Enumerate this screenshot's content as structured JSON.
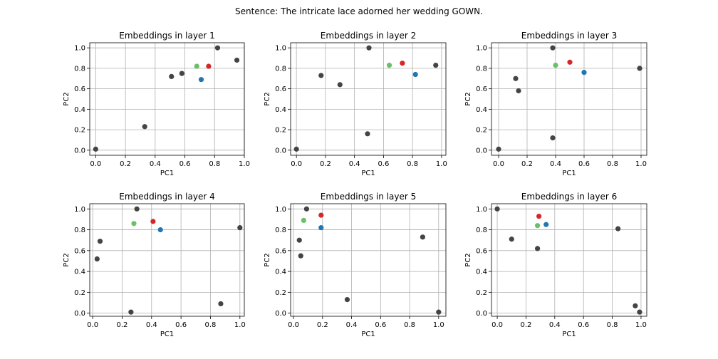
{
  "figure": {
    "suptitle": "Sentence: The intricate lace adorned her wedding GOWN."
  },
  "chart_data": [
    {
      "type": "scatter",
      "title": "Embeddings in layer 1",
      "xlabel": "PC1",
      "ylabel": "PC2",
      "xlim": [
        -0.04,
        1.0
      ],
      "ylim": [
        -0.05,
        1.05
      ],
      "xticks": [
        "0.0",
        "0.2",
        "0.4",
        "0.6",
        "0.8",
        "1.0"
      ],
      "yticks": [
        "0.0",
        "0.2",
        "0.4",
        "0.6",
        "0.8",
        "1.0"
      ],
      "grid": true,
      "points": [
        {
          "x": 0.0,
          "y": 0.01,
          "color": "#444444"
        },
        {
          "x": 0.33,
          "y": 0.23,
          "color": "#444444"
        },
        {
          "x": 0.51,
          "y": 0.72,
          "color": "#444444"
        },
        {
          "x": 0.58,
          "y": 0.75,
          "color": "#444444"
        },
        {
          "x": 0.68,
          "y": 0.82,
          "color": "#6abf69"
        },
        {
          "x": 0.76,
          "y": 0.82,
          "color": "#d62728"
        },
        {
          "x": 0.71,
          "y": 0.69,
          "color": "#1f77b4"
        },
        {
          "x": 0.82,
          "y": 1.0,
          "color": "#444444"
        },
        {
          "x": 0.95,
          "y": 0.88,
          "color": "#444444"
        }
      ]
    },
    {
      "type": "scatter",
      "title": "Embeddings in layer 2",
      "xlabel": "PC1",
      "ylabel": "PC2",
      "xlim": [
        -0.04,
        1.03
      ],
      "ylim": [
        -0.05,
        1.05
      ],
      "xticks": [
        "0.0",
        "0.2",
        "0.4",
        "0.6",
        "0.8",
        "1.0"
      ],
      "yticks": [
        "0.0",
        "0.2",
        "0.4",
        "0.6",
        "0.8",
        "1.0"
      ],
      "grid": true,
      "points": [
        {
          "x": 0.0,
          "y": 0.01,
          "color": "#444444"
        },
        {
          "x": 0.17,
          "y": 0.73,
          "color": "#444444"
        },
        {
          "x": 0.3,
          "y": 0.64,
          "color": "#444444"
        },
        {
          "x": 0.49,
          "y": 0.16,
          "color": "#444444"
        },
        {
          "x": 0.5,
          "y": 1.0,
          "color": "#444444"
        },
        {
          "x": 0.64,
          "y": 0.83,
          "color": "#6abf69"
        },
        {
          "x": 0.73,
          "y": 0.85,
          "color": "#d62728"
        },
        {
          "x": 0.82,
          "y": 0.74,
          "color": "#1f77b4"
        },
        {
          "x": 0.96,
          "y": 0.83,
          "color": "#444444"
        }
      ]
    },
    {
      "type": "scatter",
      "title": "Embeddings in layer 3",
      "xlabel": "PC1",
      "ylabel": "PC2",
      "xlim": [
        -0.05,
        1.04
      ],
      "ylim": [
        -0.05,
        1.05
      ],
      "xticks": [
        "0.0",
        "0.2",
        "0.4",
        "0.6",
        "0.8",
        "1.0"
      ],
      "yticks": [
        "0.0",
        "0.2",
        "0.4",
        "0.6",
        "0.8",
        "1.0"
      ],
      "grid": true,
      "points": [
        {
          "x": 0.0,
          "y": 0.01,
          "color": "#444444"
        },
        {
          "x": 0.12,
          "y": 0.7,
          "color": "#444444"
        },
        {
          "x": 0.14,
          "y": 0.58,
          "color": "#444444"
        },
        {
          "x": 0.38,
          "y": 0.12,
          "color": "#444444"
        },
        {
          "x": 0.38,
          "y": 1.0,
          "color": "#444444"
        },
        {
          "x": 0.4,
          "y": 0.83,
          "color": "#6abf69"
        },
        {
          "x": 0.5,
          "y": 0.86,
          "color": "#d62728"
        },
        {
          "x": 0.6,
          "y": 0.76,
          "color": "#1f77b4"
        },
        {
          "x": 0.99,
          "y": 0.8,
          "color": "#444444"
        }
      ]
    },
    {
      "type": "scatter",
      "title": "Embeddings in layer 4",
      "xlabel": "PC1",
      "ylabel": "PC2",
      "xlim": [
        -0.02,
        1.03
      ],
      "ylim": [
        -0.03,
        1.05
      ],
      "xticks": [
        "0.0",
        "0.2",
        "0.4",
        "0.6",
        "0.8",
        "1.0"
      ],
      "yticks": [
        "0.0",
        "0.2",
        "0.4",
        "0.6",
        "0.8",
        "1.0"
      ],
      "grid": true,
      "points": [
        {
          "x": 0.03,
          "y": 0.52,
          "color": "#444444"
        },
        {
          "x": 0.05,
          "y": 0.69,
          "color": "#444444"
        },
        {
          "x": 0.26,
          "y": 0.01,
          "color": "#444444"
        },
        {
          "x": 0.28,
          "y": 0.86,
          "color": "#6abf69"
        },
        {
          "x": 0.3,
          "y": 1.0,
          "color": "#444444"
        },
        {
          "x": 0.41,
          "y": 0.88,
          "color": "#d62728"
        },
        {
          "x": 0.46,
          "y": 0.8,
          "color": "#1f77b4"
        },
        {
          "x": 0.87,
          "y": 0.09,
          "color": "#444444"
        },
        {
          "x": 1.0,
          "y": 0.82,
          "color": "#444444"
        }
      ]
    },
    {
      "type": "scatter",
      "title": "Embeddings in layer 5",
      "xlabel": "PC1",
      "ylabel": "PC2",
      "xlim": [
        -0.02,
        1.05
      ],
      "ylim": [
        -0.03,
        1.05
      ],
      "xticks": [
        "0.0",
        "0.2",
        "0.4",
        "0.6",
        "0.8",
        "1.0"
      ],
      "yticks": [
        "0.0",
        "0.2",
        "0.4",
        "0.6",
        "0.8",
        "1.0"
      ],
      "grid": true,
      "points": [
        {
          "x": 0.04,
          "y": 0.7,
          "color": "#444444"
        },
        {
          "x": 0.05,
          "y": 0.55,
          "color": "#444444"
        },
        {
          "x": 0.07,
          "y": 0.89,
          "color": "#6abf69"
        },
        {
          "x": 0.09,
          "y": 1.0,
          "color": "#444444"
        },
        {
          "x": 0.19,
          "y": 0.94,
          "color": "#d62728"
        },
        {
          "x": 0.19,
          "y": 0.82,
          "color": "#1f77b4"
        },
        {
          "x": 0.37,
          "y": 0.13,
          "color": "#444444"
        },
        {
          "x": 0.89,
          "y": 0.73,
          "color": "#444444"
        },
        {
          "x": 1.0,
          "y": 0.01,
          "color": "#444444"
        }
      ]
    },
    {
      "type": "scatter",
      "title": "Embeddings in layer 6",
      "xlabel": "PC1",
      "ylabel": "PC2",
      "xlim": [
        -0.04,
        1.04
      ],
      "ylim": [
        -0.03,
        1.05
      ],
      "xticks": [
        "0.0",
        "0.2",
        "0.4",
        "0.6",
        "0.8",
        "1.0"
      ],
      "yticks": [
        "0.0",
        "0.2",
        "0.4",
        "0.6",
        "0.8",
        "1.0"
      ],
      "grid": true,
      "points": [
        {
          "x": 0.0,
          "y": 1.0,
          "color": "#444444"
        },
        {
          "x": 0.1,
          "y": 0.71,
          "color": "#444444"
        },
        {
          "x": 0.28,
          "y": 0.62,
          "color": "#444444"
        },
        {
          "x": 0.28,
          "y": 0.84,
          "color": "#6abf69"
        },
        {
          "x": 0.29,
          "y": 0.93,
          "color": "#d62728"
        },
        {
          "x": 0.34,
          "y": 0.85,
          "color": "#1f77b4"
        },
        {
          "x": 0.84,
          "y": 0.81,
          "color": "#444444"
        },
        {
          "x": 0.96,
          "y": 0.07,
          "color": "#444444"
        },
        {
          "x": 0.99,
          "y": 0.01,
          "color": "#444444"
        }
      ]
    }
  ]
}
